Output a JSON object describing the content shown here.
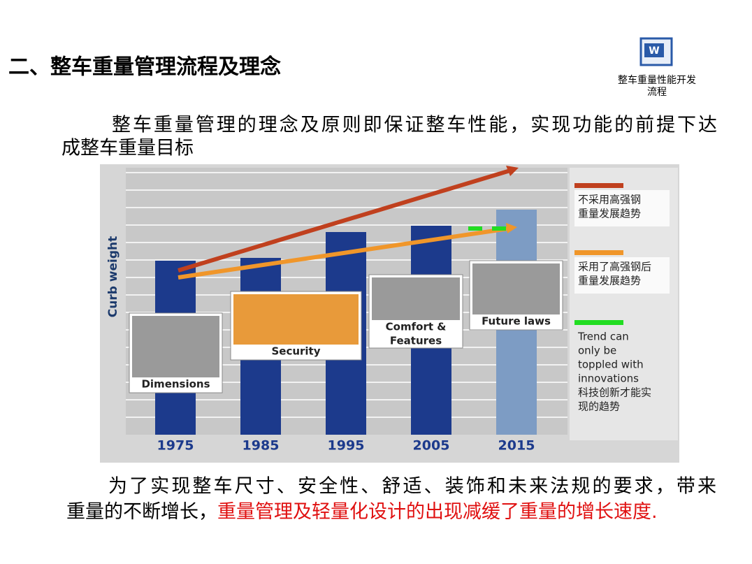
{
  "header": {
    "title": "二、整车重量管理流程及理念",
    "icon_caption": [
      "整车重量性能开发",
      "流程"
    ]
  },
  "intro": [
    "整车重量管理的理念及原则即保证整车性能，实现功能的前提下达",
    "成整车重量目标"
  ],
  "figure": {
    "type": "bar",
    "y_label": "Curb weight",
    "categories": [
      "1975",
      "1985",
      "1995",
      "2005",
      "2015"
    ],
    "values": [
      249,
      253,
      290,
      299,
      322
    ],
    "colors": [
      "#1c3a8c",
      "#1c3a8c",
      "#1c3a8c",
      "#1c3a8c",
      "#7d9cc4"
    ],
    "photos": [
      [
        "Dimensions"
      ],
      [
        "Security"
      ],
      [
        "Comfort &",
        "Features"
      ],
      [
        "Future laws"
      ]
    ],
    "legend": [
      {
        "color": "#c0401e",
        "lines": [
          "不采用高强钢",
          "重量发展趋势"
        ]
      },
      {
        "color": "#f0962a",
        "lines": [
          "采用了高强钢后",
          "重量发展趋势"
        ]
      },
      {
        "color": "#22dd22",
        "lines": [
          "Trend can",
          "only be",
          "toppled with",
          "innovations",
          "科技创新才能实",
          "现的趋势"
        ]
      }
    ]
  },
  "conclusion": {
    "line1": "为了实现整车尺寸、安全性、舒适、装饰和未来法规的要求，带来",
    "line2_black": "重量的不断增长，",
    "line2_red": "重量管理及轻量化设计的出现减缓了重量的增长速度."
  }
}
